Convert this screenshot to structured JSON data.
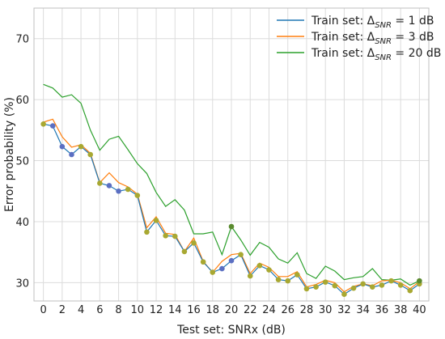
{
  "chart_data": {
    "type": "line",
    "xlabel": "Test set: SNRx (dB)",
    "ylabel": "Error probability (%)",
    "xlim": [
      -1,
      41
    ],
    "ylim": [
      27,
      75
    ],
    "xticks": [
      0,
      2,
      4,
      6,
      8,
      10,
      12,
      14,
      16,
      18,
      20,
      22,
      24,
      26,
      28,
      30,
      32,
      34,
      36,
      38,
      40
    ],
    "yticks": [
      30,
      40,
      50,
      60,
      70
    ],
    "grid": true,
    "legend_position": "top-right",
    "x": [
      0,
      1,
      2,
      3,
      4,
      5,
      6,
      7,
      8,
      9,
      10,
      11,
      12,
      13,
      14,
      15,
      16,
      17,
      18,
      19,
      20,
      21,
      22,
      23,
      24,
      25,
      26,
      27,
      28,
      29,
      30,
      31,
      32,
      33,
      34,
      35,
      36,
      37,
      38,
      39,
      40
    ],
    "series": [
      {
        "legend_prefix": "Train set: Δ",
        "legend_sub": "SNR",
        "legend_suffix": " = 1 dB",
        "color": "#1f77b4",
        "values": [
          56.0,
          55.7,
          52.3,
          51.0,
          52.3,
          51.0,
          46.3,
          45.9,
          45.0,
          45.3,
          44.3,
          38.3,
          40.2,
          37.7,
          37.6,
          35.1,
          36.5,
          33.4,
          31.7,
          32.3,
          33.6,
          34.6,
          31.1,
          32.8,
          32.1,
          30.5,
          30.3,
          31.3,
          29.0,
          29.3,
          30.1,
          29.5,
          28.1,
          29.1,
          29.8,
          29.3,
          29.6,
          30.3,
          29.6,
          28.7,
          29.8
        ]
      },
      {
        "legend_prefix": "Train set: Δ",
        "legend_sub": "SNR",
        "legend_suffix": " = 3 dB",
        "color": "#ff7f0e",
        "values": [
          56.3,
          56.8,
          53.9,
          52.2,
          52.6,
          51.2,
          46.4,
          48.0,
          46.4,
          45.7,
          44.5,
          39.0,
          40.8,
          38.1,
          37.9,
          35.1,
          37.3,
          33.5,
          31.7,
          33.5,
          34.6,
          34.8,
          31.5,
          33.2,
          32.5,
          31.0,
          31.0,
          31.8,
          29.3,
          29.7,
          30.4,
          30.0,
          28.5,
          29.4,
          29.8,
          29.5,
          30.3,
          30.4,
          30.0,
          29.0,
          30.2
        ]
      },
      {
        "legend_prefix": "Train set: Δ",
        "legend_sub": "SNR",
        "legend_suffix": " = 20 dB",
        "color": "#2ca02c",
        "values": [
          62.5,
          61.9,
          60.4,
          60.8,
          59.4,
          55.0,
          51.7,
          53.5,
          54.0,
          51.8,
          49.5,
          47.9,
          44.8,
          42.5,
          43.6,
          41.9,
          38.0,
          38.0,
          38.3,
          34.6,
          39.2,
          37.0,
          34.5,
          36.6,
          35.8,
          33.9,
          33.2,
          34.9,
          31.5,
          30.7,
          32.7,
          31.9,
          30.5,
          30.8,
          31.0,
          32.3,
          30.5,
          30.4,
          30.6,
          29.6,
          30.3
        ]
      }
    ],
    "marker_color": "#5b6fc2",
    "marker_highlight_color": "#a8a832",
    "marker_dark_color": "#5a8a2e"
  }
}
